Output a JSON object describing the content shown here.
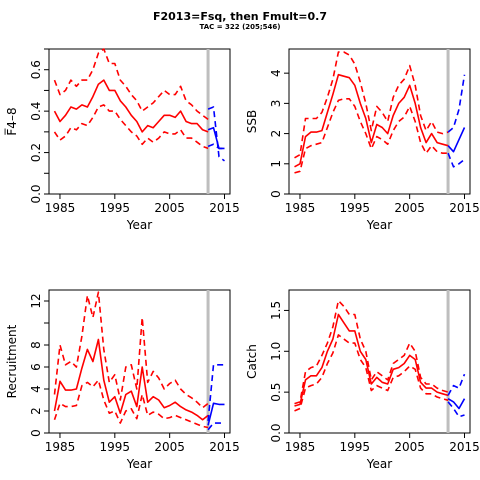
{
  "figure": {
    "title": "F2013=Fsq, then Fmult=0.7",
    "subtitle": "TAC = 322 (205;546)"
  },
  "colors": {
    "historic": "#ff0000",
    "forecast": "#0000ff",
    "reference_line": "#bebebe"
  },
  "chart_data": [
    {
      "type": "line",
      "xlabel": "Year",
      "ylabel": "F̅4–8",
      "xlim": [
        1983,
        2016
      ],
      "ylim": [
        0,
        0.7
      ],
      "xticks": [
        1985,
        1995,
        2005,
        2015
      ],
      "yticks": [
        0.0,
        0.1,
        0.2,
        0.3,
        0.4,
        0.5,
        0.6,
        0.7
      ],
      "ytick_labels": [
        "0.0",
        "",
        "0.2",
        "",
        "0.4",
        "",
        "0.6",
        ""
      ],
      "grid": false,
      "vline": 2012,
      "x": [
        1984,
        1985,
        1986,
        1987,
        1988,
        1989,
        1990,
        1991,
        1992,
        1993,
        1994,
        1995,
        1996,
        1997,
        1998,
        1999,
        2000,
        2001,
        2002,
        2003,
        2004,
        2005,
        2006,
        2007,
        2008,
        2009,
        2010,
        2011,
        2012
      ],
      "series": [
        {
          "role": "historic",
          "style": "solid",
          "values": [
            0.4,
            0.35,
            0.38,
            0.42,
            0.41,
            0.43,
            0.42,
            0.47,
            0.53,
            0.55,
            0.5,
            0.5,
            0.45,
            0.42,
            0.38,
            0.35,
            0.3,
            0.33,
            0.32,
            0.35,
            0.38,
            0.38,
            0.37,
            0.4,
            0.35,
            0.34,
            0.34,
            0.31,
            0.3
          ]
        },
        {
          "role": "historic",
          "style": "dashed",
          "values": [
            0.55,
            0.48,
            0.5,
            0.55,
            0.52,
            0.55,
            0.55,
            0.6,
            0.68,
            0.7,
            0.63,
            0.63,
            0.55,
            0.52,
            0.48,
            0.45,
            0.4,
            0.42,
            0.44,
            0.47,
            0.5,
            0.48,
            0.48,
            0.52,
            0.45,
            0.43,
            0.4,
            0.38,
            0.36
          ]
        },
        {
          "role": "historic",
          "style": "dashed",
          "values": [
            0.3,
            0.26,
            0.28,
            0.32,
            0.31,
            0.34,
            0.33,
            0.37,
            0.42,
            0.43,
            0.4,
            0.4,
            0.36,
            0.33,
            0.3,
            0.28,
            0.24,
            0.27,
            0.25,
            0.27,
            0.3,
            0.29,
            0.29,
            0.31,
            0.27,
            0.27,
            0.25,
            0.23,
            0.22
          ]
        },
        {
          "role": "forecast",
          "style": "solid",
          "x": [
            2012,
            2013,
            2014,
            2015
          ],
          "values": [
            0.31,
            0.32,
            0.22,
            0.22
          ]
        },
        {
          "role": "forecast",
          "style": "dashed",
          "x": [
            2012,
            2013,
            2014,
            2015
          ],
          "values": [
            0.41,
            0.42,
            0.18,
            0.16
          ]
        },
        {
          "role": "forecast",
          "style": "dashed",
          "x": [
            2012,
            2013,
            2014,
            2015
          ],
          "values": [
            0.23,
            0.24,
            0.22,
            0.22
          ]
        }
      ]
    },
    {
      "type": "line",
      "xlabel": "Year",
      "ylabel": "SSB",
      "xlim": [
        1983,
        2016
      ],
      "ylim": [
        0,
        4.8
      ],
      "xticks": [
        1985,
        1995,
        2005,
        2015
      ],
      "yticks": [
        0,
        1,
        2,
        3,
        4
      ],
      "ytick_labels": [
        "0",
        "1",
        "2",
        "3",
        "4"
      ],
      "grid": false,
      "vline": 2012,
      "x": [
        1984,
        1985,
        1986,
        1987,
        1988,
        1989,
        1990,
        1991,
        1992,
        1993,
        1994,
        1995,
        1996,
        1997,
        1998,
        1999,
        2000,
        2001,
        2002,
        2003,
        2004,
        2005,
        2006,
        2007,
        2008,
        2009,
        2010,
        2011,
        2012
      ],
      "series": [
        {
          "role": "historic",
          "style": "solid",
          "values": [
            0.9,
            1.0,
            1.9,
            2.05,
            2.05,
            2.1,
            2.7,
            3.3,
            3.95,
            3.9,
            3.85,
            3.6,
            3.0,
            2.5,
            1.7,
            2.3,
            2.2,
            2.0,
            2.6,
            3.0,
            3.2,
            3.6,
            3.0,
            2.2,
            1.7,
            2.0,
            1.7,
            1.65,
            1.6
          ]
        },
        {
          "role": "historic",
          "style": "dashed",
          "values": [
            1.2,
            1.3,
            2.5,
            2.5,
            2.5,
            2.7,
            3.2,
            3.8,
            4.7,
            4.7,
            4.6,
            4.3,
            3.7,
            3.0,
            2.1,
            2.9,
            2.7,
            2.4,
            3.2,
            3.6,
            3.8,
            4.25,
            3.6,
            2.6,
            2.1,
            2.4,
            2.05,
            2.0,
            2.05
          ]
        },
        {
          "role": "historic",
          "style": "dashed",
          "values": [
            0.7,
            0.75,
            1.5,
            1.6,
            1.65,
            1.7,
            2.2,
            2.7,
            3.1,
            3.15,
            3.15,
            2.9,
            2.4,
            2.0,
            1.5,
            1.9,
            1.8,
            1.65,
            2.1,
            2.4,
            2.55,
            2.9,
            2.4,
            1.7,
            1.35,
            1.6,
            1.4,
            1.35,
            1.35
          ]
        },
        {
          "role": "forecast",
          "style": "solid",
          "x": [
            2012,
            2013,
            2014,
            2015
          ],
          "values": [
            1.6,
            1.4,
            1.8,
            2.2
          ]
        },
        {
          "role": "forecast",
          "style": "dashed",
          "x": [
            2012,
            2013,
            2014,
            2015
          ],
          "values": [
            2.05,
            2.2,
            2.8,
            3.95
          ]
        },
        {
          "role": "forecast",
          "style": "dashed",
          "x": [
            2012,
            2013,
            2014,
            2015
          ],
          "values": [
            1.35,
            0.9,
            1.0,
            1.15
          ]
        }
      ]
    },
    {
      "type": "line",
      "xlabel": "Year",
      "ylabel": "Recruitment",
      "xlim": [
        1983,
        2016
      ],
      "ylim": [
        0,
        13
      ],
      "xticks": [
        1985,
        1995,
        2005,
        2015
      ],
      "yticks": [
        0,
        2,
        4,
        6,
        8,
        10,
        12
      ],
      "ytick_labels": [
        "0",
        "2",
        "4",
        "6",
        "8",
        "",
        "12"
      ],
      "grid": false,
      "vline": 2012,
      "x": [
        1984,
        1985,
        1986,
        1987,
        1988,
        1989,
        1990,
        1991,
        1992,
        1993,
        1994,
        1995,
        1996,
        1997,
        1998,
        1999,
        2000,
        2001,
        2002,
        2003,
        2004,
        2005,
        2006,
        2007,
        2008,
        2009,
        2010,
        2011,
        2012
      ],
      "series": [
        {
          "role": "historic",
          "style": "solid",
          "values": [
            2.0,
            4.7,
            3.9,
            3.9,
            4.0,
            5.9,
            7.6,
            6.5,
            8.5,
            4.8,
            2.8,
            3.3,
            1.8,
            3.5,
            3.8,
            2.4,
            6.0,
            2.8,
            3.3,
            3.0,
            2.3,
            2.5,
            2.8,
            2.4,
            2.1,
            1.9,
            1.6,
            1.2,
            1.6
          ]
        },
        {
          "role": "historic",
          "style": "dashed",
          "values": [
            3.5,
            8.0,
            6.2,
            6.5,
            6.0,
            8.8,
            12.5,
            10.5,
            12.8,
            7.6,
            4.6,
            5.3,
            3.0,
            6.0,
            6.2,
            4.0,
            10.5,
            4.6,
            5.6,
            5.0,
            4.0,
            4.5,
            4.8,
            4.0,
            3.5,
            3.2,
            2.8,
            2.3,
            2.7
          ]
        },
        {
          "role": "historic",
          "style": "dashed",
          "values": [
            1.2,
            2.7,
            2.4,
            2.4,
            2.5,
            4.3,
            4.6,
            4.2,
            4.8,
            3.0,
            1.8,
            2.0,
            0.9,
            2.0,
            2.2,
            1.3,
            3.5,
            1.6,
            1.9,
            1.7,
            1.3,
            1.4,
            1.6,
            1.4,
            1.2,
            1.0,
            0.8,
            0.6,
            0.5
          ]
        },
        {
          "role": "forecast",
          "style": "solid",
          "x": [
            2012,
            2013,
            2014,
            2015
          ],
          "values": [
            0.7,
            2.7,
            2.6,
            2.6
          ]
        },
        {
          "role": "forecast",
          "style": "dashed",
          "x": [
            2012,
            2013,
            2014,
            2015
          ],
          "values": [
            1.1,
            6.2,
            6.2,
            6.2
          ]
        },
        {
          "role": "forecast",
          "style": "dashed",
          "x": [
            2012,
            2013,
            2014,
            2015
          ],
          "values": [
            0.3,
            0.9,
            0.9,
            0.9
          ]
        }
      ]
    },
    {
      "type": "line",
      "xlabel": "Year",
      "ylabel": "Catch",
      "xlim": [
        1983,
        2016
      ],
      "ylim": [
        0,
        1.75
      ],
      "xticks": [
        1985,
        1995,
        2005,
        2015
      ],
      "yticks": [
        0.0,
        0.5,
        1.0,
        1.5
      ],
      "ytick_labels": [
        "0.0",
        "0.5",
        "1.0",
        "1.5"
      ],
      "grid": false,
      "vline": 2012,
      "x": [
        1984,
        1985,
        1986,
        1987,
        1988,
        1989,
        1990,
        1991,
        1992,
        1993,
        1994,
        1995,
        1996,
        1997,
        1998,
        1999,
        2000,
        2001,
        2002,
        2003,
        2004,
        2005,
        2006,
        2007,
        2008,
        2009,
        2010,
        2011,
        2012
      ],
      "series": [
        {
          "role": "historic",
          "style": "solid",
          "values": [
            0.33,
            0.35,
            0.65,
            0.7,
            0.7,
            0.8,
            1.0,
            1.15,
            1.45,
            1.35,
            1.25,
            1.25,
            1.0,
            0.9,
            0.6,
            0.68,
            0.62,
            0.6,
            0.78,
            0.8,
            0.85,
            0.95,
            0.9,
            0.62,
            0.55,
            0.55,
            0.5,
            0.48,
            0.46
          ]
        },
        {
          "role": "historic",
          "style": "dashed",
          "values": [
            0.36,
            0.38,
            0.75,
            0.8,
            0.82,
            0.95,
            1.1,
            1.3,
            1.62,
            1.55,
            1.45,
            1.45,
            1.15,
            1.0,
            0.65,
            0.75,
            0.7,
            0.65,
            0.85,
            0.9,
            0.95,
            1.1,
            1.0,
            0.68,
            0.6,
            0.6,
            0.55,
            0.52,
            0.5
          ]
        },
        {
          "role": "historic",
          "style": "dashed",
          "values": [
            0.27,
            0.3,
            0.55,
            0.58,
            0.6,
            0.68,
            0.85,
            0.98,
            1.2,
            1.15,
            1.1,
            1.1,
            0.9,
            0.8,
            0.52,
            0.58,
            0.55,
            0.52,
            0.68,
            0.7,
            0.75,
            0.82,
            0.78,
            0.55,
            0.48,
            0.48,
            0.44,
            0.42,
            0.4
          ]
        },
        {
          "role": "forecast",
          "style": "solid",
          "x": [
            2012,
            2013,
            2014,
            2015
          ],
          "values": [
            0.42,
            0.38,
            0.3,
            0.42
          ]
        },
        {
          "role": "forecast",
          "style": "dashed",
          "x": [
            2012,
            2013,
            2014,
            2015
          ],
          "values": [
            0.46,
            0.58,
            0.55,
            0.72
          ]
        },
        {
          "role": "forecast",
          "style": "dashed",
          "x": [
            2012,
            2013,
            2014,
            2015
          ],
          "values": [
            0.38,
            0.3,
            0.2,
            0.22
          ]
        }
      ]
    }
  ]
}
